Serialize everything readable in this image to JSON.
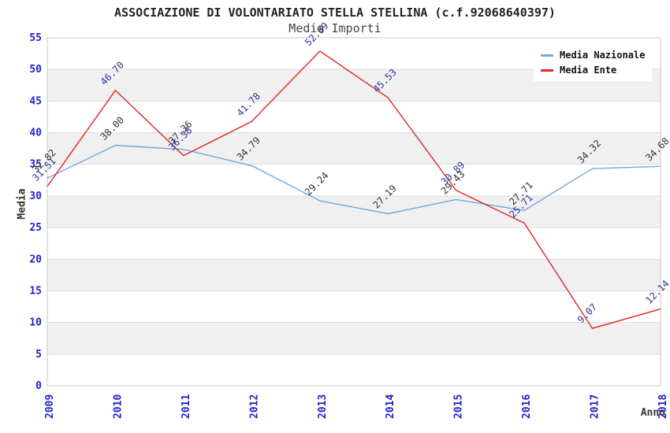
{
  "chart_data": {
    "type": "line",
    "title": "ASSOCIAZIONE DI VOLONTARIATO STELLA STELLINA (c.f.92068640397)",
    "subtitle": "Media Importi",
    "xlabel": "Anno",
    "ylabel": "Media",
    "categories": [
      "2009",
      "2010",
      "2011",
      "2012",
      "2013",
      "2014",
      "2015",
      "2016",
      "2017",
      "2018"
    ],
    "series": [
      {
        "name": "Media Nazionale",
        "color": "#6fa8dc",
        "label_color": "#333333",
        "values": [
          32.82,
          38.0,
          37.36,
          34.79,
          29.24,
          27.19,
          29.43,
          27.71,
          34.32,
          34.68
        ]
      },
      {
        "name": "Media Ente",
        "color": "#e62222",
        "label_color": "#30309a",
        "values": [
          31.51,
          46.7,
          36.38,
          41.78,
          52.89,
          45.53,
          30.89,
          25.71,
          9.07,
          12.14
        ]
      }
    ],
    "ylim": [
      0,
      55
    ],
    "ytick_step": 5,
    "grid": "horizontal",
    "band_fill": "alternating",
    "legend_position": "top-right",
    "colors": {
      "axis_ticks": "#2222cc",
      "grid": "#dcdcdc",
      "band": "#f0f0f0",
      "border": "#c9c9c9",
      "title": "#222222",
      "subtitle": "#444444",
      "axis_titles": "#333333"
    }
  }
}
